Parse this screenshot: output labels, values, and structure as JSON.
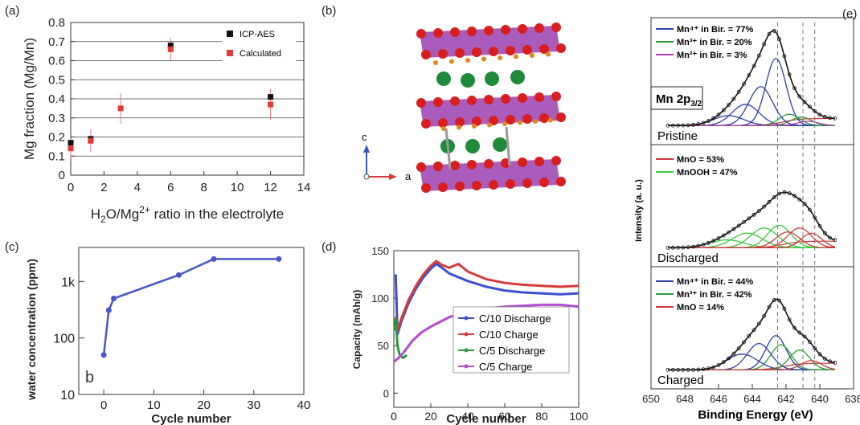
{
  "panels": {
    "a": "(a)",
    "b": "(b)",
    "c": "(c)",
    "d": "(d)",
    "e": "(e)"
  },
  "crystal": {
    "axis_c": "c",
    "axis_a": "a",
    "colors": {
      "octahedra": "#9b3fb0",
      "oxygen": "#d81e1e",
      "mg": "#1f8a3a",
      "water": "#e08a1c"
    }
  },
  "chart_data": [
    {
      "panel": "a",
      "type": "scatter",
      "xlabel_main": "H",
      "xlabel_sub": "2",
      "xlabel_mid": "O/Mg",
      "xlabel_sup": "2+",
      "xlabel_tail": " ratio in the electrolyte",
      "ylabel": "Mg fraction (Mg/Mn)",
      "xlim": [
        0,
        14
      ],
      "ylim": [
        0,
        0.8
      ],
      "xticks": [
        "0",
        "2",
        "4",
        "6",
        "8",
        "10",
        "12",
        "14"
      ],
      "yticks": [
        "0",
        "0.1",
        "0.2",
        "0.3",
        "0.4",
        "0.5",
        "0.6",
        "0.7",
        "0.8"
      ],
      "grid": true,
      "legend_position": "top-right",
      "series": [
        {
          "name": "ICP-AES",
          "color": "#111111",
          "x": [
            0,
            1.2,
            6,
            12
          ],
          "y": [
            0.17,
            0.19,
            0.68,
            0.41
          ]
        },
        {
          "name": "Calculated",
          "color": "#e03a3a",
          "x": [
            0,
            1.2,
            3,
            6,
            12
          ],
          "y": [
            0.14,
            0.18,
            0.35,
            0.66,
            0.37
          ],
          "err": [
            0.05,
            0.06,
            0.08,
            0.06,
            0.08
          ]
        }
      ]
    },
    {
      "panel": "c",
      "type": "line",
      "ylabel": "water concentration (ppm)",
      "xlabel": "Cycle number",
      "annotation": "b",
      "yscale": "log",
      "xlim": [
        -5,
        40
      ],
      "ylim": [
        10,
        4000
      ],
      "xticks": [
        "0",
        "10",
        "20",
        "30",
        "40"
      ],
      "yticks": [
        "10",
        "100",
        "1k"
      ],
      "color": "#4a55c8",
      "x": [
        0,
        1,
        2,
        15,
        22,
        35
      ],
      "y": [
        50,
        310,
        500,
        1300,
        2500,
        2500
      ]
    },
    {
      "panel": "d",
      "type": "line",
      "ylabel": "Capacity (mAh/g)",
      "xlabel": "Cycle number",
      "xlim": [
        0,
        100
      ],
      "ylim": [
        -15,
        150
      ],
      "xticks": [
        "0",
        "20",
        "40",
        "60",
        "80",
        "100"
      ],
      "yticks": [
        "0",
        "50",
        "100",
        "150"
      ],
      "legend_position": "bottom-right",
      "series": [
        {
          "name": "C/10 Discharge",
          "color": "#3b4fd0",
          "x": [
            1,
            2,
            4,
            8,
            12,
            16,
            20,
            23,
            26,
            30,
            35,
            40,
            50,
            60,
            70,
            80,
            90,
            100
          ],
          "y": [
            125,
            62,
            75,
            95,
            110,
            122,
            131,
            136,
            132,
            126,
            122,
            118,
            112,
            108,
            106,
            105,
            104,
            105
          ]
        },
        {
          "name": "C/10 Charge",
          "color": "#d63a3a",
          "x": [
            1,
            2,
            4,
            8,
            12,
            16,
            20,
            23,
            26,
            30,
            35,
            40,
            50,
            60,
            70,
            80,
            90,
            100
          ],
          "y": [
            80,
            66,
            78,
            98,
            113,
            125,
            134,
            139,
            135,
            132,
            136,
            128,
            120,
            116,
            114,
            113,
            112,
            113
          ]
        },
        {
          "name": "C/5 Discharge",
          "color": "#2a9a3a",
          "x": [
            0.5,
            1,
            2,
            3,
            5,
            7
          ],
          "y": [
            66,
            78,
            50,
            41,
            37,
            40
          ]
        },
        {
          "name": "C/5 Charge",
          "color": "#b24ccf",
          "x": [
            0,
            2,
            5,
            10,
            15,
            20,
            25,
            30,
            35,
            40,
            50,
            60,
            70,
            80,
            90,
            100
          ],
          "y": [
            33,
            36,
            42,
            55,
            64,
            70,
            75,
            80,
            83,
            86,
            89,
            91,
            92,
            93,
            93,
            91
          ]
        }
      ]
    },
    {
      "panel": "e",
      "type": "line",
      "ylabel": "Intensity (a. u.)",
      "xlabel": "Binding Energy (eV)",
      "xlim": [
        650,
        638
      ],
      "xticks": [
        "650",
        "648",
        "646",
        "644",
        "642",
        "640",
        "638"
      ],
      "reference_lines_eV": [
        642.5,
        641.0,
        640.3
      ],
      "header_main": "Mn 2p",
      "header_sub": "3/2",
      "subpanels": [
        {
          "label": "Pristine",
          "legend": [
            {
              "text": "Mn⁴⁺ in Bir. = 77%",
              "color": "#2f3fa8"
            },
            {
              "text": "Mn³⁺ in Bir. = 20%",
              "color": "#2e9a3a"
            },
            {
              "text": "Mn²⁺ in Bir. = 3%",
              "color": "#b23aa8"
            }
          ],
          "peaks": [
            {
              "center": 642.6,
              "width": 0.6,
              "height": 0.95,
              "color": "#2f3fa8"
            },
            {
              "center": 643.5,
              "width": 0.7,
              "height": 0.55,
              "color": "#2f3fa8"
            },
            {
              "center": 644.4,
              "width": 0.8,
              "height": 0.3,
              "color": "#2f3fa8"
            },
            {
              "center": 645.4,
              "width": 0.9,
              "height": 0.14,
              "color": "#2f3fa8"
            },
            {
              "center": 641.8,
              "width": 0.6,
              "height": 0.16,
              "color": "#2e9a3a"
            },
            {
              "center": 641.1,
              "width": 0.6,
              "height": 0.12,
              "color": "#2e9a3a"
            },
            {
              "center": 640.7,
              "width": 0.6,
              "height": 0.06,
              "color": "#b23aa8"
            }
          ]
        },
        {
          "label": "Discharged",
          "legend": [
            {
              "text": "MnO = 53%",
              "color": "#c93a3a"
            },
            {
              "text": "MnOOH = 47%",
              "color": "#3ec93e"
            }
          ],
          "peaks": [
            {
              "center": 642.4,
              "width": 0.7,
              "height": 0.34,
              "color": "#3ec93e"
            },
            {
              "center": 643.3,
              "width": 0.8,
              "height": 0.3,
              "color": "#3ec93e"
            },
            {
              "center": 644.3,
              "width": 0.9,
              "height": 0.22,
              "color": "#3ec93e"
            },
            {
              "center": 645.5,
              "width": 1.0,
              "height": 0.12,
              "color": "#3ec93e"
            },
            {
              "center": 641.2,
              "width": 0.7,
              "height": 0.3,
              "color": "#c93a3a"
            },
            {
              "center": 640.5,
              "width": 0.6,
              "height": 0.22,
              "color": "#c93a3a"
            },
            {
              "center": 641.9,
              "width": 0.7,
              "height": 0.24,
              "color": "#c93a3a"
            }
          ]
        },
        {
          "label": "Charged",
          "legend": [
            {
              "text": "Mn⁴⁺ in Bir. = 44%",
              "color": "#2f3fa8"
            },
            {
              "text": "Mn³⁺ in Bir. = 42%",
              "color": "#2e9a3a"
            },
            {
              "text": "MnO = 14%",
              "color": "#c93a3a"
            }
          ],
          "peaks": [
            {
              "center": 642.6,
              "width": 0.6,
              "height": 0.52,
              "color": "#2f3fa8"
            },
            {
              "center": 643.6,
              "width": 0.7,
              "height": 0.4,
              "color": "#2f3fa8"
            },
            {
              "center": 644.6,
              "width": 0.9,
              "height": 0.24,
              "color": "#2f3fa8"
            },
            {
              "center": 642.3,
              "width": 0.6,
              "height": 0.38,
              "color": "#2e9a3a"
            },
            {
              "center": 641.2,
              "width": 0.6,
              "height": 0.3,
              "color": "#2e9a3a"
            },
            {
              "center": 640.5,
              "width": 0.6,
              "height": 0.14,
              "color": "#c93a3a"
            }
          ]
        }
      ]
    }
  ]
}
